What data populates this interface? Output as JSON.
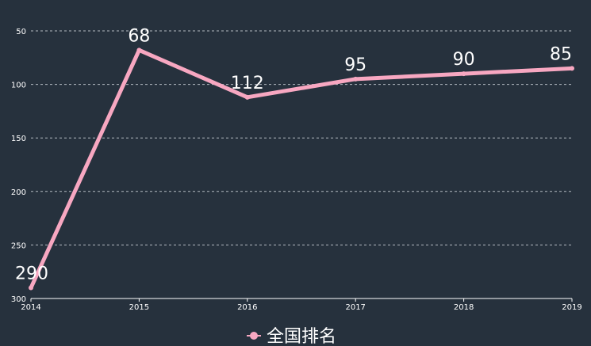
{
  "chart_data": {
    "type": "line",
    "categories": [
      "2014",
      "2015",
      "2016",
      "2017",
      "2018",
      "2019"
    ],
    "series": [
      {
        "name": "全国排名",
        "values": [
          290,
          68,
          112,
          95,
          90,
          85
        ],
        "color": "#f7a7c1"
      }
    ],
    "y_ticks": [
      50,
      100,
      150,
      200,
      250,
      300
    ],
    "ylim": [
      50,
      300
    ],
    "y_inverted": true,
    "grid": true,
    "legend_position": "bottom-center",
    "title": "",
    "xlabel": "",
    "ylabel": ""
  },
  "colors": {
    "background": "#26313d",
    "grid": "#d8dde3",
    "text": "#ffffff"
  }
}
